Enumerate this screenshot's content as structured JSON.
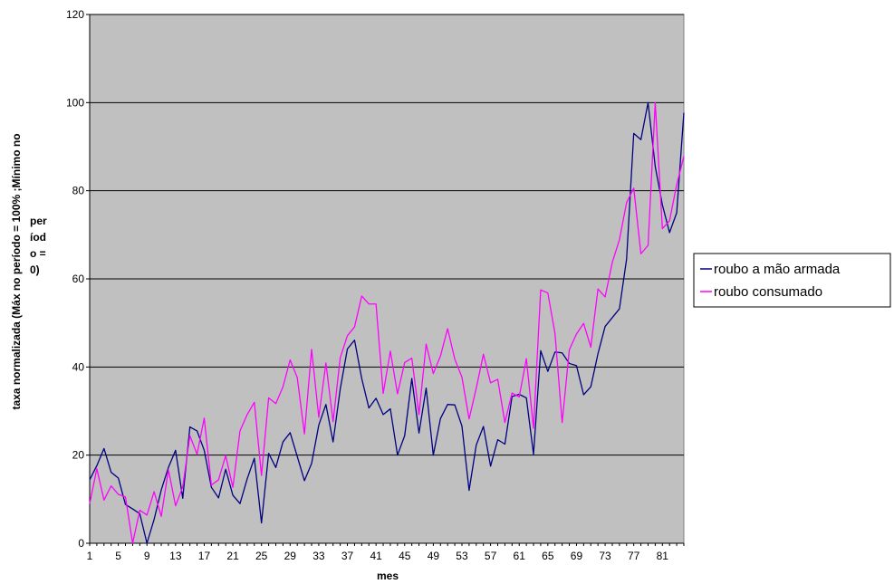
{
  "chart_data": {
    "type": "line",
    "xlabel": "mes",
    "ylabel_main": "taxa normalizada (Máx no período = 100% ;Mínimo no",
    "ylabel_wrap": [
      "per",
      "íod",
      "o =",
      "0)"
    ],
    "ylim": [
      0,
      120
    ],
    "yticks": [
      0,
      20,
      40,
      60,
      80,
      100,
      120
    ],
    "xrange": [
      1,
      84
    ],
    "xticks": [
      1,
      5,
      9,
      13,
      17,
      21,
      25,
      29,
      33,
      37,
      41,
      45,
      49,
      53,
      57,
      61,
      65,
      69,
      73,
      77,
      81
    ],
    "grid": "horizontal",
    "legend_position": "right",
    "series": [
      {
        "name": "roubo a mão armada",
        "color": "#000080",
        "values": [
          14.4,
          17.6,
          21.5,
          16.1,
          14.8,
          8.8,
          7.8,
          6.7,
          0,
          5.4,
          12.1,
          17.2,
          21.1,
          10.2,
          26.4,
          25.5,
          21.1,
          12.7,
          10.3,
          16.8,
          10.9,
          9,
          14.6,
          19.3,
          4.6,
          20.4,
          17.2,
          23,
          25.1,
          19.7,
          14.2,
          18.1,
          26.8,
          31.5,
          23,
          35,
          44.1,
          46.1,
          37.4,
          30.7,
          32.9,
          29.2,
          30.5,
          20,
          24.4,
          37.4,
          25,
          35.2,
          20,
          28.3,
          31.5,
          31.4,
          26.6,
          12,
          22.3,
          26.5,
          17.5,
          23.5,
          22.5,
          33.3,
          33.8,
          33,
          20.2,
          43.7,
          39,
          43.4,
          43.2,
          40.8,
          40.3,
          33.7,
          35.5,
          43,
          49.2,
          51.2,
          53.2,
          64.5,
          93,
          91.6,
          100,
          85.5,
          76.8,
          70.5,
          75,
          97.7
        ]
      },
      {
        "name": "roubo consumado",
        "color": "#ff00ff",
        "values": [
          9,
          16.9,
          9.8,
          13,
          11.1,
          10.5,
          0,
          7.5,
          6.4,
          11.7,
          6.1,
          16.7,
          8.5,
          12.8,
          24.4,
          20.2,
          28.4,
          13.2,
          14.4,
          19.9,
          12.7,
          25.5,
          29.2,
          32,
          15.4,
          33,
          31.7,
          35.5,
          41.6,
          37.6,
          24.8,
          44,
          28.6,
          40.9,
          27.6,
          42.1,
          47.1,
          49.1,
          56.1,
          54.3,
          54.3,
          34,
          43.6,
          33.9,
          41,
          42,
          29.2,
          45.2,
          38.5,
          42.5,
          48.7,
          41.8,
          37.7,
          28.2,
          35.2,
          42.9,
          36.4,
          37.2,
          27.4,
          34.1,
          33.2,
          41.9,
          26.1,
          57.5,
          56.8,
          47.6,
          27.4,
          43.9,
          47.5,
          49.9,
          44.5,
          57.7,
          55.9,
          63.7,
          68.9,
          77.3,
          80.6,
          65.7,
          67.6,
          100,
          71.4,
          73.2,
          81.4,
          87.8
        ]
      }
    ]
  }
}
